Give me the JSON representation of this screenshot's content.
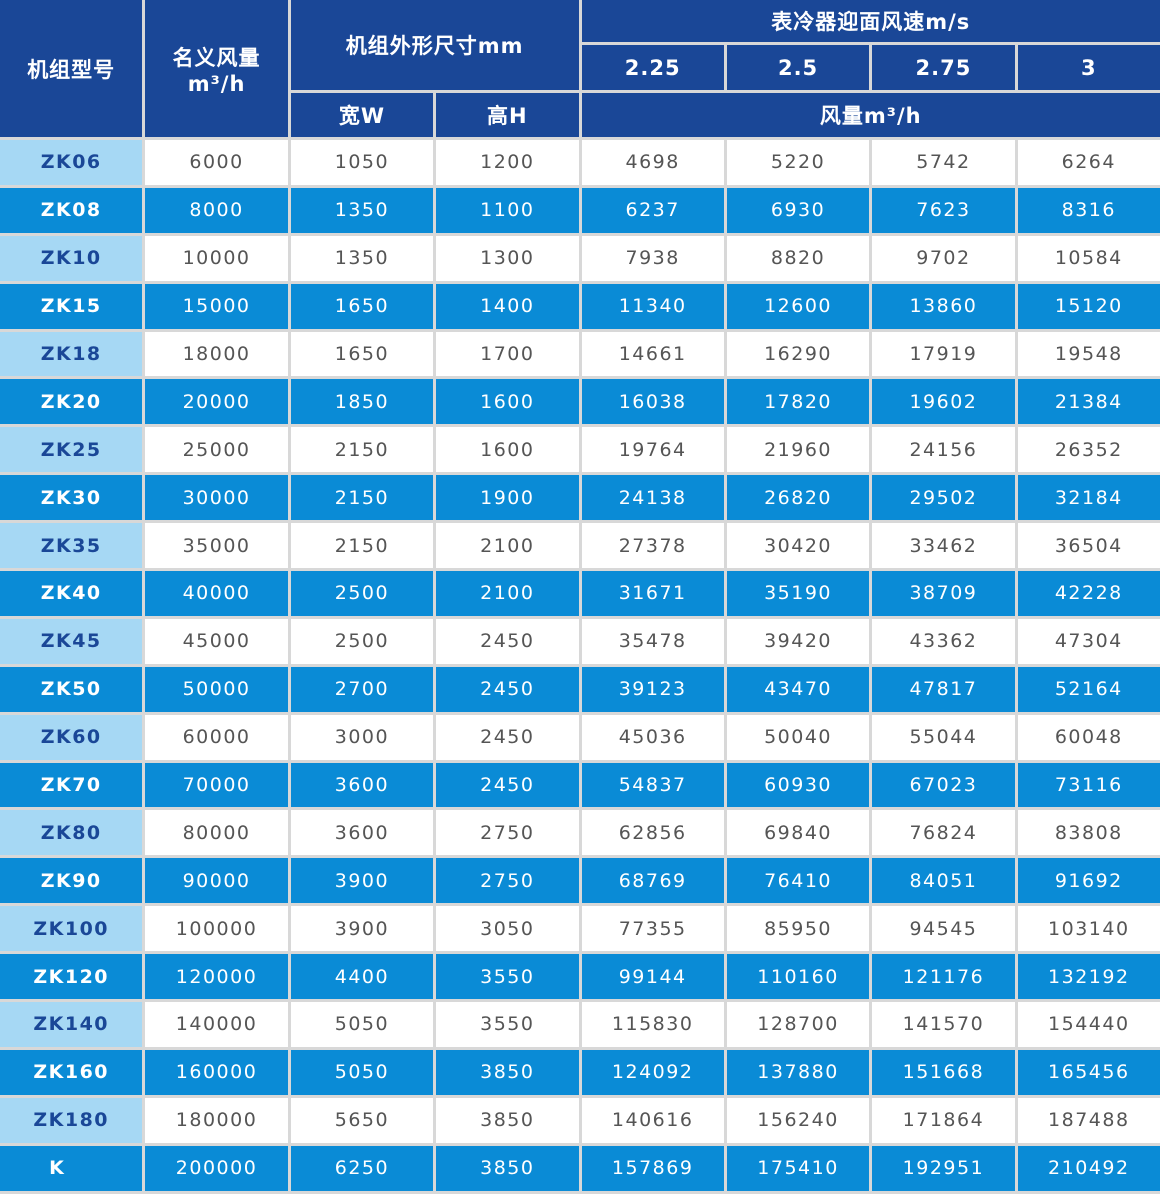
{
  "header": {
    "model": "机组型号",
    "nominal_airflow": "名义风量",
    "nominal_airflow_unit": "m³/h",
    "dimensions": "机组外形尺寸mm",
    "width": "宽W",
    "height": "高H",
    "face_velocity": "表冷器迎面风速m/s",
    "velocities": [
      "2.25",
      "2.5",
      "2.75",
      "3"
    ],
    "airflow_unit": "风量m³/h"
  },
  "colors": {
    "header": "#1a4797",
    "row_blue": "#0a8bd6",
    "model_light": "#a6d8f4",
    "border": "#d8d8d8"
  },
  "rows": [
    [
      "ZK06",
      "6000",
      "1050",
      "1200",
      "4698",
      "5220",
      "5742",
      "6264"
    ],
    [
      "ZK08",
      "8000",
      "1350",
      "1100",
      "6237",
      "6930",
      "7623",
      "8316"
    ],
    [
      "ZK10",
      "10000",
      "1350",
      "1300",
      "7938",
      "8820",
      "9702",
      "10584"
    ],
    [
      "ZK15",
      "15000",
      "1650",
      "1400",
      "11340",
      "12600",
      "13860",
      "15120"
    ],
    [
      "ZK18",
      "18000",
      "1650",
      "1700",
      "14661",
      "16290",
      "17919",
      "19548"
    ],
    [
      "ZK20",
      "20000",
      "1850",
      "1600",
      "16038",
      "17820",
      "19602",
      "21384"
    ],
    [
      "ZK25",
      "25000",
      "2150",
      "1600",
      "19764",
      "21960",
      "24156",
      "26352"
    ],
    [
      "ZK30",
      "30000",
      "2150",
      "1900",
      "24138",
      "26820",
      "29502",
      "32184"
    ],
    [
      "ZK35",
      "35000",
      "2150",
      "2100",
      "27378",
      "30420",
      "33462",
      "36504"
    ],
    [
      "ZK40",
      "40000",
      "2500",
      "2100",
      "31671",
      "35190",
      "38709",
      "42228"
    ],
    [
      "ZK45",
      "45000",
      "2500",
      "2450",
      "35478",
      "39420",
      "43362",
      "47304"
    ],
    [
      "ZK50",
      "50000",
      "2700",
      "2450",
      "39123",
      "43470",
      "47817",
      "52164"
    ],
    [
      "ZK60",
      "60000",
      "3000",
      "2450",
      "45036",
      "50040",
      "55044",
      "60048"
    ],
    [
      "ZK70",
      "70000",
      "3600",
      "2450",
      "54837",
      "60930",
      "67023",
      "73116"
    ],
    [
      "ZK80",
      "80000",
      "3600",
      "2750",
      "62856",
      "69840",
      "76824",
      "83808"
    ],
    [
      "ZK90",
      "90000",
      "3900",
      "2750",
      "68769",
      "76410",
      "84051",
      "91692"
    ],
    [
      "ZK100",
      "100000",
      "3900",
      "3050",
      "77355",
      "85950",
      "94545",
      "103140"
    ],
    [
      "ZK120",
      "120000",
      "4400",
      "3550",
      "99144",
      "110160",
      "121176",
      "132192"
    ],
    [
      "ZK140",
      "140000",
      "5050",
      "3550",
      "115830",
      "128700",
      "141570",
      "154440"
    ],
    [
      "ZK160",
      "160000",
      "5050",
      "3850",
      "124092",
      "137880",
      "151668",
      "165456"
    ],
    [
      "ZK180",
      "180000",
      "5650",
      "3850",
      "140616",
      "156240",
      "171864",
      "187488"
    ],
    [
      "K",
      "200000",
      "6250",
      "3850",
      "157869",
      "175410",
      "192951",
      "210492"
    ]
  ]
}
